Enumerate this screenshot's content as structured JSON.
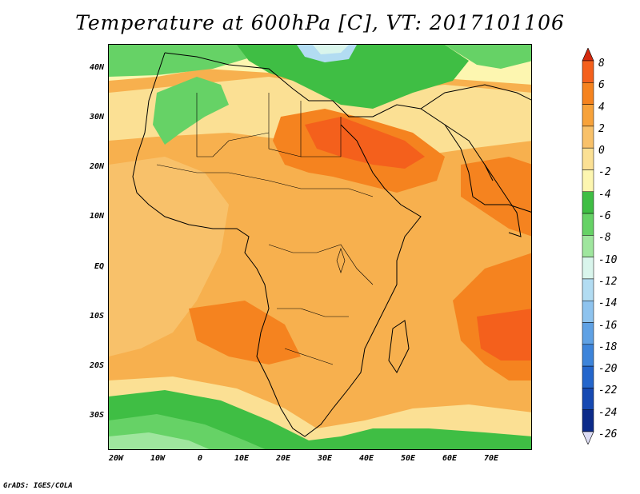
{
  "title": "Temperature at 600hPa [C], VT: 2017101106",
  "credit": "GrADS: IGES/COLA",
  "axes": {
    "lat_labels": [
      {
        "label": "40N",
        "lat": 40
      },
      {
        "label": "30N",
        "lat": 30
      },
      {
        "label": "20N",
        "lat": 20
      },
      {
        "label": "10N",
        "lat": 10
      },
      {
        "label": "EQ",
        "lat": 0
      },
      {
        "label": "10S",
        "lat": -10
      },
      {
        "label": "20S",
        "lat": -20
      },
      {
        "label": "30S",
        "lat": -30
      }
    ],
    "lon_labels": [
      {
        "label": "20W",
        "lon": -20
      },
      {
        "label": "10W",
        "lon": -10
      },
      {
        "label": "0",
        "lon": 0
      },
      {
        "label": "10E",
        "lon": 10
      },
      {
        "label": "20E",
        "lon": 20
      },
      {
        "label": "30E",
        "lon": 30
      },
      {
        "label": "40E",
        "lon": 40
      },
      {
        "label": "50E",
        "lon": 50
      },
      {
        "label": "60E",
        "lon": 60
      },
      {
        "label": "70E",
        "lon": 70
      }
    ]
  },
  "colorbar": {
    "labels": [
      "8",
      "6",
      "4",
      "2",
      "0",
      "-2",
      "-4",
      "-6",
      "-8",
      "-10",
      "-12",
      "-14",
      "-16",
      "-18",
      "-20",
      "-22",
      "-24",
      "-26"
    ],
    "colors": [
      "#e83a12",
      "#f4601c",
      "#f5831f",
      "#f7a23a",
      "#f8c16a",
      "#fbe094",
      "#fdf6b0",
      "#3fbe44",
      "#66d266",
      "#9fe69e",
      "#d9f5ec",
      "#b2dcf2",
      "#8ec3ee",
      "#5fa1e4",
      "#3d84da",
      "#2466cc",
      "#1649b2",
      "#0c2b8a",
      "#08126a"
    ],
    "top_arrow_color": "#d42a0e",
    "bottom_arrow_color": "#dcdcf5"
  },
  "map": {
    "extent": {
      "lon_min": -21,
      "lon_max": 80,
      "lat_min": -36,
      "lat_max": 45
    }
  }
}
